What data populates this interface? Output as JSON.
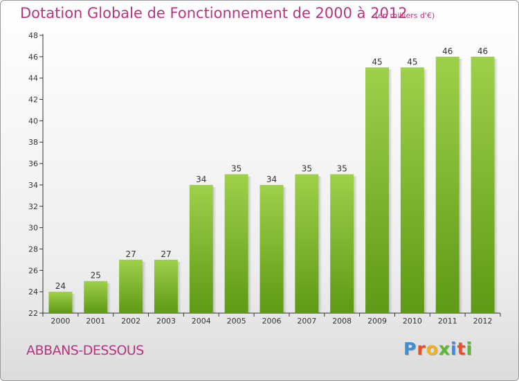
{
  "chart_data": {
    "type": "bar",
    "title": "Dotation Globale de Fonctionnement de 2000 à 2012",
    "subtitle": "(en milliers d'€)",
    "categories": [
      "2000",
      "2001",
      "2002",
      "2003",
      "2004",
      "2005",
      "2006",
      "2007",
      "2008",
      "2009",
      "2010",
      "2011",
      "2012"
    ],
    "values": [
      24,
      25,
      27,
      27,
      34,
      35,
      34,
      35,
      35,
      45,
      45,
      46,
      46
    ],
    "data_labels": [
      "24",
      "25",
      "27",
      "27",
      "34",
      "35",
      "34",
      "35",
      "35",
      "45",
      "45",
      "46",
      "46"
    ],
    "ylim": [
      22,
      48
    ],
    "yticks": [
      "22",
      "24",
      "26",
      "28",
      "30",
      "32",
      "34",
      "36",
      "38",
      "40",
      "42",
      "44",
      "46",
      "48"
    ],
    "grid": false,
    "legend": "none",
    "bar_color_top": "#9fd04a",
    "bar_color_bottom": "#5e9a15"
  },
  "footer": {
    "commune": "ABBANS-DESSOUS",
    "logo_letters": [
      "P",
      "r",
      "o",
      "x",
      "i",
      "t",
      "i"
    ],
    "logo_colors": [
      "#3b8fd6",
      "#e8502a",
      "#f3b11c",
      "#5cb82f",
      "#3b8fd6",
      "#e8502a",
      "#5cb82f"
    ]
  },
  "colors": {
    "title": "#b5347e",
    "axis": "#333333",
    "data_label": "#333333"
  }
}
